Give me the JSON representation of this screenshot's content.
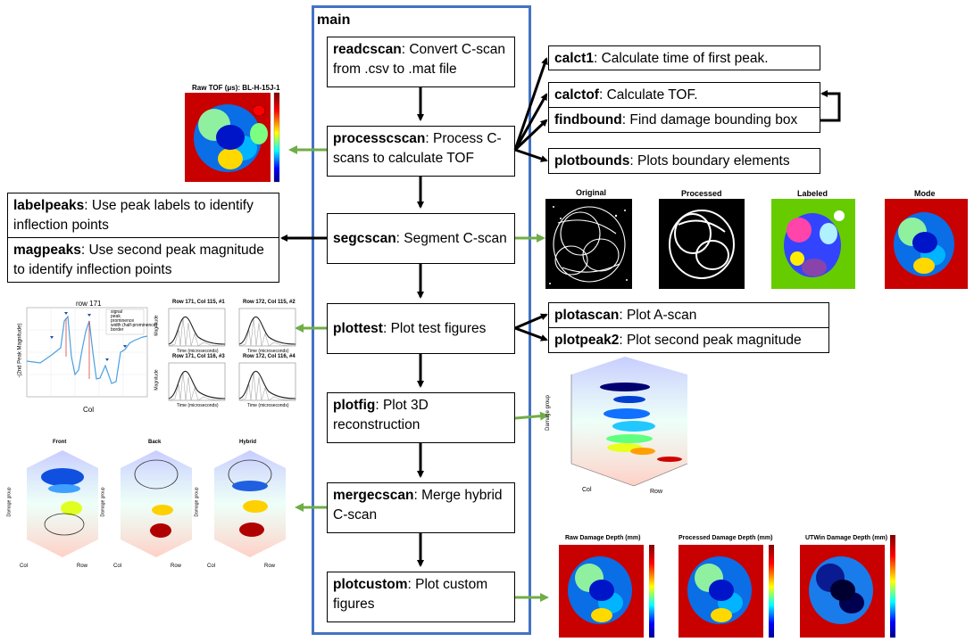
{
  "main": {
    "title": "main"
  },
  "flow": [
    {
      "fn": "readcscan",
      "desc": ": Convert C-scan from .csv to .mat file"
    },
    {
      "fn": "processcscan",
      "desc": ": Process C-scans to calculate TOF"
    },
    {
      "fn": "segcscan",
      "desc": ": Segment C-scan"
    },
    {
      "fn": "plottest",
      "desc": ": Plot test figures"
    },
    {
      "fn": "plotfig",
      "desc": ": Plot 3D reconstruction"
    },
    {
      "fn": "mergecscan",
      "desc": ": Merge hybrid C-scan"
    },
    {
      "fn": "plotcustom",
      "desc": ": Plot custom figures"
    }
  ],
  "process_sub": [
    {
      "fn": "calct1",
      "desc": ": Calculate time of first peak."
    },
    {
      "fn": "calctof",
      "desc": ": Calculate TOF."
    },
    {
      "fn": "findbound",
      "desc": ": Find damage bounding box"
    },
    {
      "fn": "plotbounds",
      "desc": ": Plots boundary elements"
    }
  ],
  "seg_sub": [
    {
      "fn": "labelpeaks",
      "desc": ": Use peak labels to identify inflection points"
    },
    {
      "fn": "magpeaks",
      "desc": ": Use second peak magnitude to identify inflection points"
    }
  ],
  "plottest_sub": [
    {
      "fn": "plotascan",
      "desc": ": Plot A-scan"
    },
    {
      "fn": "plotpeak2",
      "desc": ": Plot second peak magnitude"
    }
  ],
  "figures": {
    "raw_tof_title": "Raw TOF (μs): BL-H-15J-1",
    "seg_titles": [
      "Original",
      "Processed",
      "Labeled",
      "Mode"
    ],
    "custom_titles": [
      "Raw Damage Depth (mm)",
      "Processed Damage Depth (mm)",
      "UTWin Damage Depth (mm)"
    ],
    "hybrid_titles": [
      "Front",
      "Back",
      "Hybrid"
    ],
    "row_title": "row 171",
    "ascan_titles": [
      "Row 171, Col 115, #1",
      "Row 172, Col 115, #2",
      "Row 171, Col 116, #3",
      "Row 172, Col 116, #4"
    ],
    "legend": [
      "signal",
      "peak",
      "prominence",
      "width (half-prominence)",
      "border"
    ],
    "axis_col": "Col",
    "axis_row": "Row",
    "axis_damage": "Damage group",
    "axis_magnitude": "Magnitude",
    "axis_time": "Time (microseconds)",
    "axis_peak": "-(2nd Peak Magnitude)"
  },
  "colors": {
    "frame": "#4472c4",
    "green_arrow": "#70ad47",
    "black": "#000000"
  }
}
